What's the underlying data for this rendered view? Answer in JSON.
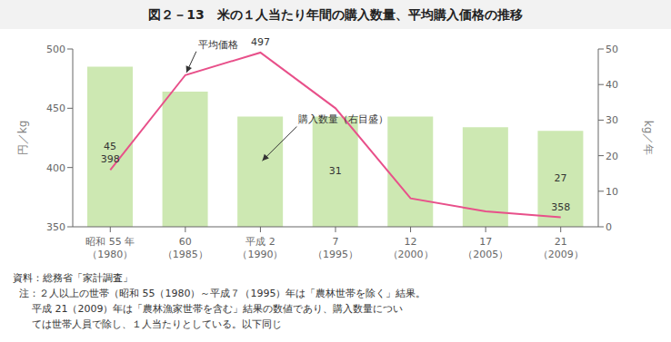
{
  "chart_data": {
    "type": "bar",
    "title": "図２－13　米の１人当たり年間の購入数量、平均購入価格の推移",
    "categories": [
      "昭和 55 年\n（1980）",
      "60\n（1985）",
      "平成 2\n（1990）",
      "7\n（1995）",
      "12\n（2000）",
      "17\n（2005）",
      "21\n（2009）"
    ],
    "series": [
      {
        "type": "bar",
        "axis": "y2",
        "color": "#cde8b2",
        "values": [
          45,
          38,
          31,
          31,
          31,
          28,
          27
        ],
        "value_labels": [
          "45",
          null,
          null,
          "31",
          null,
          null,
          "27"
        ]
      },
      {
        "type": "line",
        "axis": "y",
        "color": "#e8508a",
        "values": [
          398,
          478,
          497,
          450,
          374,
          363,
          358
        ],
        "value_labels": [
          "398",
          null,
          "497",
          null,
          null,
          null,
          "358"
        ]
      }
    ],
    "ylabel": "円／kg",
    "y2label": "kg／年",
    "ylim": [
      350,
      500
    ],
    "yticks": [
      350,
      400,
      450,
      500
    ],
    "y2lim": [
      0,
      50
    ],
    "y2ticks": [
      0,
      10,
      20,
      30,
      40,
      50
    ],
    "grid": false,
    "annotations": [
      {
        "text": "平均価格",
        "x": 1,
        "y": 478
      },
      {
        "text": "購入数量（右目盛）",
        "x": 2,
        "y": 404
      }
    ],
    "notes": [
      "資料：総務省「家計調査」",
      "  注：２人以上の世帯（昭和 55（1980）～平成７（1995）年は「農林世帯を除く」結果。",
      "      平成 21（2009）年は「農林漁家世帯を含む」結果の数値であり、購入数量につい",
      "      ては世帯人員で除し、１人当たりとしている。以下同じ"
    ]
  }
}
